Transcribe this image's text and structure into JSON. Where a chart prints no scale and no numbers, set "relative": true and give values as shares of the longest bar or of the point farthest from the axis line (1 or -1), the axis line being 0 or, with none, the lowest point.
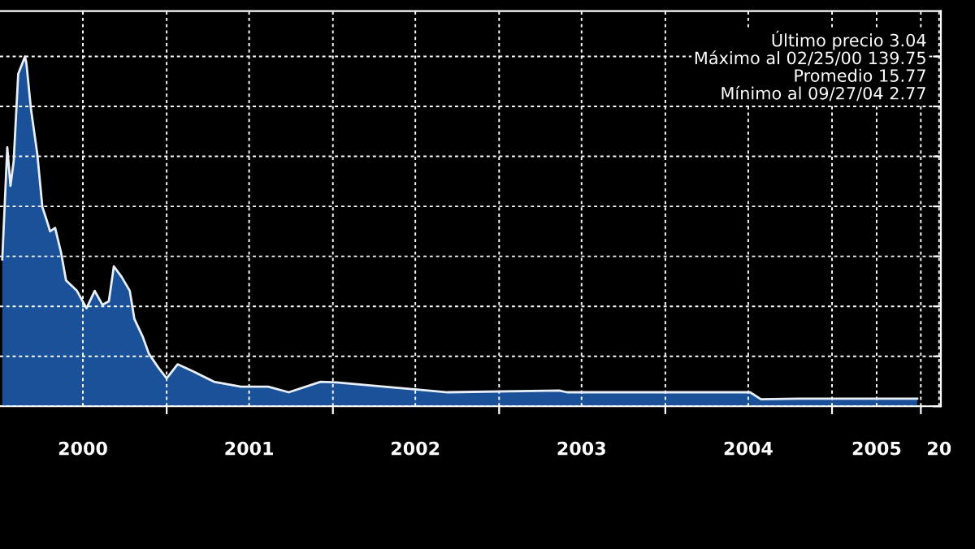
{
  "chart_data": {
    "type": "area",
    "relative": true,
    "grid": true,
    "tick_labels": "x",
    "x": [
      "2000-01-06",
      "2000-01-17",
      "2000-01-24",
      "2000-01-31",
      "2000-02-10",
      "2000-02-25",
      "2000-02-28",
      "2000-03-09",
      "2000-03-23",
      "2000-04-03",
      "2000-04-13",
      "2000-04-20",
      "2000-05-01",
      "2000-05-14",
      "2000-05-25",
      "2000-06-18",
      "2000-07-09",
      "2000-07-27",
      "2000-08-13",
      "2000-08-27",
      "2000-09-07",
      "2000-09-24",
      "2000-10-12",
      "2000-10-22",
      "2000-11-09",
      "2000-11-23",
      "2000-12-14",
      "2001-01-01",
      "2001-01-25",
      "2001-02-28",
      "2001-04-15",
      "2001-06-13",
      "2001-08-12",
      "2001-09-26",
      "2001-12-05",
      "2002-01-09",
      "2002-04-24",
      "2002-09-10",
      "2003-05-13",
      "2003-05-30",
      "2004-07-05",
      "2004-07-29",
      "2004-10-18",
      "2005-07-07"
    ],
    "series": [
      {
        "color": "#1e5fb4",
        "values": [
          0.42,
          0.74,
          0.63,
          0.7,
          0.95,
          1.0,
          0.98,
          0.85,
          0.72,
          0.57,
          0.53,
          0.5,
          0.51,
          0.44,
          0.36,
          0.33,
          0.28,
          0.33,
          0.29,
          0.3,
          0.4,
          0.37,
          0.33,
          0.25,
          0.2,
          0.15,
          0.11,
          0.08,
          0.12,
          0.1,
          0.07,
          0.056,
          0.056,
          0.04,
          0.07,
          0.068,
          0.056,
          0.04,
          0.045,
          0.04,
          0.04,
          0.02,
          0.022,
          0.022
        ]
      }
    ],
    "xlim": [
      "2000-01-01",
      "2005-08-28"
    ],
    "xticks": [
      {
        "value": "2000-07-01",
        "label": "2000"
      },
      {
        "value": "2001-01-01",
        "label": null
      },
      {
        "value": "2001-07-01",
        "label": "2001"
      },
      {
        "value": "2002-01-01",
        "label": null
      },
      {
        "value": "2002-07-01",
        "label": "2002"
      },
      {
        "value": "2003-01-01",
        "label": null
      },
      {
        "value": "2003-07-01",
        "label": "2003"
      },
      {
        "value": "2004-01-01",
        "label": null
      },
      {
        "value": "2004-07-01",
        "label": "2004"
      },
      {
        "value": "2005-01-01",
        "label": null
      },
      {
        "value": "2005-04-09",
        "label": "2005"
      },
      {
        "value": "2005-07-15",
        "label": null
      },
      {
        "value": "2005-08-24",
        "label": "20"
      }
    ],
    "annotations": [
      "Último precio 3.04",
      "Máximo al 02/25/00 139.75",
      "Promedio 15.77",
      "Mínimo al 09/27/04 2.77"
    ]
  }
}
